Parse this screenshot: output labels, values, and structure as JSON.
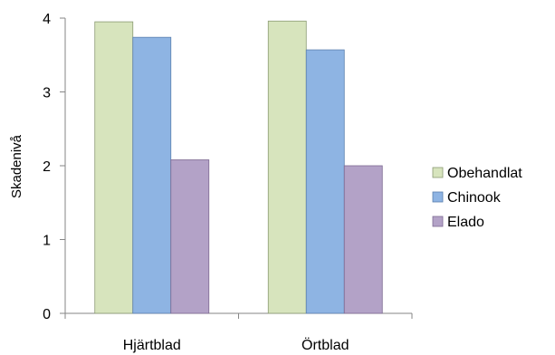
{
  "chart_data": {
    "type": "bar",
    "title": "",
    "xlabel": "",
    "ylabel": "Skadenivå",
    "categories": [
      "Hjärtblad",
      "Örtblad"
    ],
    "series": [
      {
        "name": "Obehandlat",
        "values": [
          3.95,
          3.96
        ],
        "color": "#d7e4bd",
        "stroke": "#8a9a72"
      },
      {
        "name": "Chinook",
        "values": [
          3.74,
          3.57
        ],
        "color": "#8eb4e3",
        "stroke": "#5a7fae"
      },
      {
        "name": "Elado",
        "values": [
          2.08,
          2.0
        ],
        "color": "#b3a2c7",
        "stroke": "#7d6a92"
      }
    ],
    "ylim": [
      0,
      4
    ],
    "yticks": [
      0,
      1,
      2,
      3,
      4
    ],
    "grid": false,
    "legend": "right"
  }
}
